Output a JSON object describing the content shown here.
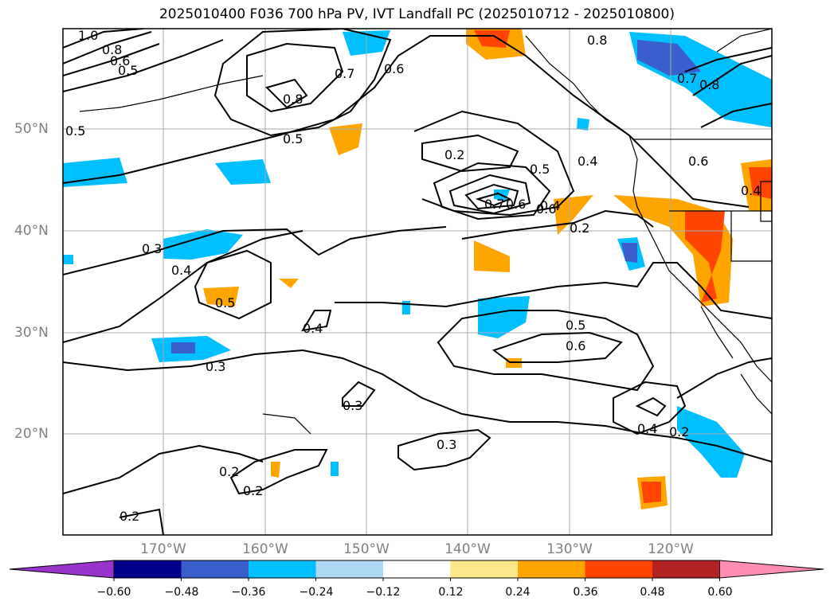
{
  "title": "2025010400 F036 700 hPa PV, IVT Landfall PC (2025010712 - 2025010800)",
  "map": {
    "lat_labels": [
      "50°N",
      "40°N",
      "30°N",
      "20°N"
    ],
    "lon_labels": [
      "170°W",
      "160°W",
      "150°W",
      "140°W",
      "130°W",
      "120°W"
    ],
    "contour_labels": [
      "1.0",
      "0.8",
      "0.6",
      "0.5",
      "0.7",
      "0.6",
      "0.8",
      "0.5",
      "0.2",
      "0.5",
      "0.4",
      "0.6",
      "0.7",
      "0.6",
      "0.4",
      "0.2",
      "0.8",
      "0.7",
      "0.8",
      "0.6",
      "0.5",
      "0.4",
      "0.3",
      "0.4",
      "0.5",
      "0.4",
      "0.3",
      "0.5",
      "0.6",
      "0.3",
      "0.3",
      "0.4",
      "0.2",
      "0.2",
      "0.2",
      "0.2"
    ]
  },
  "colorbar": {
    "ticks": [
      "−0.60",
      "−0.48",
      "−0.36",
      "−0.24",
      "−0.12",
      "0.12",
      "0.24",
      "0.36",
      "0.48",
      "0.60"
    ],
    "colors": [
      "#9933cc",
      "#00008b",
      "#3a5fcd",
      "#00bfff",
      "#add8f5",
      "#ffffff",
      "#fde68a",
      "#ffa500",
      "#ff4500",
      "#b22222",
      "#ff8db4"
    ]
  }
}
